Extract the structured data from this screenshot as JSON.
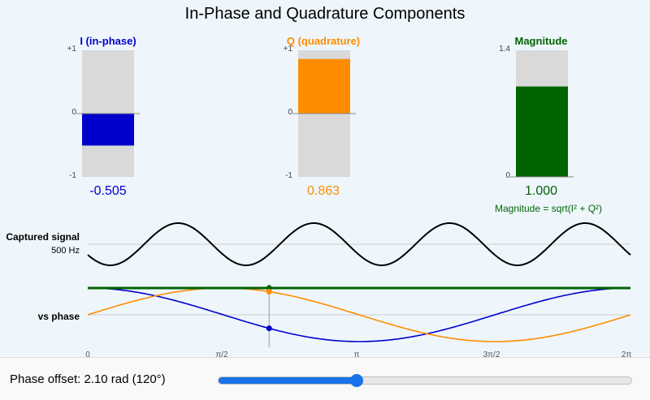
{
  "title": "In-Phase and Quadrature Components",
  "bars": {
    "i": {
      "label": "I (in-phase)",
      "value_text": "-0.505",
      "value": -0.505,
      "max_label": "+1",
      "zero_label": "0",
      "min_label": "-1",
      "color": "#0000cd"
    },
    "q": {
      "label": "Q (quadrature)",
      "value_text": "0.863",
      "value": 0.863,
      "max_label": "+1",
      "zero_label": "0",
      "min_label": "-1",
      "color": "#ff8c00"
    },
    "mag": {
      "label": "Magnitude",
      "value_text": "1.000",
      "value": 1.0,
      "max_label": "1.4",
      "min_label": "0",
      "color": "#006400"
    }
  },
  "formula": "Magnitude = sqrt(I² + Q²)",
  "signal": {
    "label": "Captured signal",
    "freq_label": "500 Hz"
  },
  "phase_plot": {
    "label": "vs phase",
    "ticks": [
      "0",
      "π/2",
      "π",
      "3π/2",
      "2π"
    ]
  },
  "control": {
    "label": "Phase offset: 2.10 rad (120°)",
    "phase_rad": 2.1,
    "max_rad": 6.2832
  },
  "chart_data": {
    "type": "line",
    "xlabel": "",
    "ylabel": "",
    "x_range": [
      0,
      6.2832
    ],
    "marker_x": 2.1,
    "series": [
      {
        "formula": "cos(φ)",
        "color": "#0000cd"
      },
      {
        "formula": "sin(φ)",
        "color": "#ff8c00"
      },
      {
        "formula": "1",
        "color": "#006400"
      }
    ]
  }
}
